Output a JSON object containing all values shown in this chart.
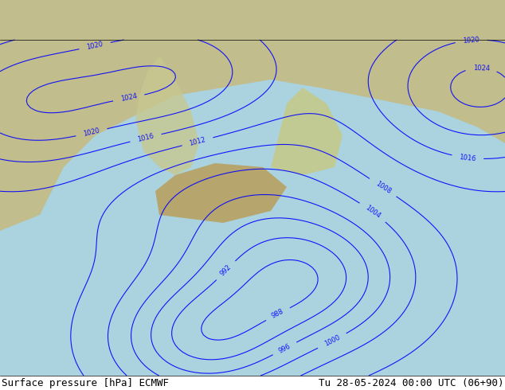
{
  "title_left": "Surface pressure [hPa] ECMWF",
  "title_right": "Tu 28-05-2024 00:00 UTC (06+90)",
  "title_fontsize": 9,
  "title_color": "#000000",
  "bg_color": "#aad3df",
  "fig_width": 6.34,
  "fig_height": 4.9,
  "dpi": 100,
  "map_bg": "#f0e8d0",
  "label_bottom_left": "Surface pressure [hPa] ECMWF",
  "label_bottom_right": "Tu 28-05-2024 00:00 UTC (06+90)"
}
